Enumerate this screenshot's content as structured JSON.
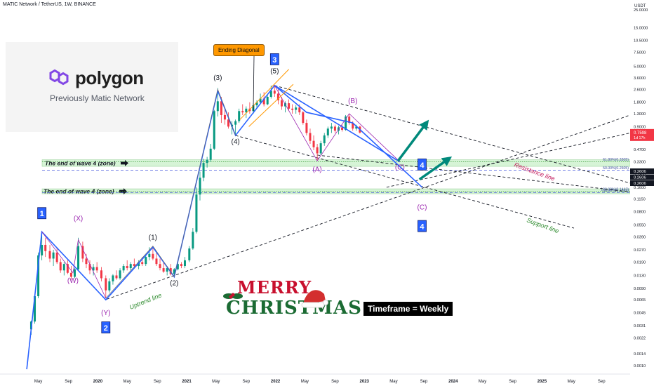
{
  "header": {
    "title": "MATIC Network / TetherUS, 1W, BINANCE"
  },
  "logo": {
    "word": "polygon",
    "subtitle": "Previously Matic Network",
    "color": "#8247e5"
  },
  "annotations": {
    "timeframe": "Timeframe = Weekly",
    "ending_diagonal": "Ending Diagonal",
    "wave4_zone_label": "The end of wave 4 (zone)",
    "resistance": "Resistance line",
    "support": "Support line",
    "uptrend": "Uptrend line",
    "xmas_top": "MERRY",
    "xmas_bottom": "CHRISTMAS"
  },
  "colors": {
    "up": "#089981",
    "down": "#f23645",
    "wave_line": "#2962ff",
    "purple": "#9c27b0",
    "zone": "#c8f0c8",
    "arrow": "#00897b",
    "blue_box": "#2962ff"
  },
  "chart_data": {
    "type": "candlestick",
    "title": "MATIC Network / TetherUS, 1W, BINANCE",
    "yscale": "log",
    "ylabel": "USDT",
    "ylim": [
      0.0008,
      25
    ],
    "y_ticks": [
      "25.0000",
      "15.0000",
      "10.5000",
      "7.5000",
      "5.0000",
      "3.6000",
      "2.6000",
      "1.8000",
      "1.3000",
      "0.9000",
      "0.6500",
      "0.4700",
      "0.3300",
      "0.2300",
      "0.1600",
      "0.1150",
      "0.0800",
      "0.0550",
      "0.0390",
      "0.0270",
      "0.0190",
      "0.0130",
      "0.0090",
      "0.0065",
      "0.0045",
      "0.0031",
      "0.0022",
      "0.0014",
      "0.0010"
    ],
    "x_ticks": [
      "May",
      "Sep",
      "2020",
      "May",
      "Sep",
      "2021",
      "May",
      "Sep",
      "2022",
      "May",
      "Sep",
      "2023",
      "May",
      "Sep",
      "2024",
      "May",
      "Sep",
      "2025",
      "May",
      "Sep"
    ],
    "current_price": {
      "value": "0.7598",
      "countdown": "1d 17h"
    },
    "price_tags": [
      "0.2606",
      "0.2606",
      "0.2606"
    ],
    "fib_levels": [
      {
        "label": "61.80%(0.3305)",
        "value": 0.3305
      },
      {
        "label": "50.00%(0.2605)",
        "value": 0.2605
      },
      {
        "label": "100.00%(0.1413)",
        "value": 0.1413
      },
      {
        "label": "50.00%(0.1369)",
        "value": 0.1369
      }
    ],
    "zones": [
      {
        "label": "The end of wave 4 (zone)",
        "low": 0.29,
        "high": 0.35
      },
      {
        "label": "The end of wave 4 (zone)",
        "low": 0.133,
        "high": 0.153
      }
    ],
    "wave_labels": [
      {
        "text": "1",
        "boxed": true,
        "t": 2019.37,
        "y": 0.075
      },
      {
        "text": "(X)",
        "boxed": false,
        "t": 2019.78,
        "y": 0.062
      },
      {
        "text": "(W)",
        "boxed": false,
        "t": 2019.72,
        "y": 0.0105
      },
      {
        "text": "(Y)",
        "boxed": false,
        "t": 2020.09,
        "y": 0.0042
      },
      {
        "text": "2",
        "boxed": true,
        "t": 2020.09,
        "y": 0.0029
      },
      {
        "text": "(1)",
        "boxed": false,
        "t": 2020.62,
        "y": 0.036
      },
      {
        "text": "(2)",
        "boxed": false,
        "t": 2020.86,
        "y": 0.0098
      },
      {
        "text": "(3)",
        "boxed": false,
        "t": 2021.35,
        "y": 3.4
      },
      {
        "text": "(4)",
        "boxed": false,
        "t": 2021.55,
        "y": 0.55
      },
      {
        "text": "(5)",
        "boxed": false,
        "t": 2021.99,
        "y": 4.1
      },
      {
        "text": "3",
        "boxed": true,
        "t": 2021.99,
        "y": 6.0
      },
      {
        "text": "(B)",
        "boxed": false,
        "t": 2022.87,
        "y": 1.75
      },
      {
        "text": "(A)",
        "boxed": false,
        "t": 2022.47,
        "y": 0.25
      },
      {
        "text": "(C)",
        "boxed": false,
        "t": 2023.4,
        "y": 0.265
      },
      {
        "text": "4",
        "boxed": true,
        "t": 2023.65,
        "y": 0.3
      },
      {
        "text": "(C)",
        "boxed": false,
        "t": 2023.65,
        "y": 0.085
      },
      {
        "text": "4",
        "boxed": true,
        "t": 2023.65,
        "y": 0.052
      }
    ],
    "blue_wave_path": [
      [
        2019.37,
        0.045
      ],
      [
        2020.09,
        0.0065
      ],
      [
        2020.62,
        0.029
      ],
      [
        2020.86,
        0.0125
      ],
      [
        2021.35,
        2.5
      ],
      [
        2021.55,
        0.7
      ],
      [
        2021.99,
        2.9
      ],
      [
        2022.35,
        1.35
      ],
      [
        2022.87,
        1.0
      ],
      [
        2023.65,
        0.16
      ]
    ],
    "candles": [
      {
        "t": 2019.25,
        "o": 0.0028,
        "h": 0.0036,
        "l": 0.0024,
        "c": 0.0035
      },
      {
        "t": 2019.29,
        "o": 0.0035,
        "h": 0.0075,
        "l": 0.0033,
        "c": 0.0072
      },
      {
        "t": 2019.33,
        "o": 0.0072,
        "h": 0.025,
        "l": 0.0068,
        "c": 0.023
      },
      {
        "t": 2019.37,
        "o": 0.023,
        "h": 0.045,
        "l": 0.02,
        "c": 0.031
      },
      {
        "t": 2019.41,
        "o": 0.031,
        "h": 0.038,
        "l": 0.022,
        "c": 0.026
      },
      {
        "t": 2019.46,
        "o": 0.026,
        "h": 0.031,
        "l": 0.019,
        "c": 0.021
      },
      {
        "t": 2019.5,
        "o": 0.021,
        "h": 0.027,
        "l": 0.017,
        "c": 0.025
      },
      {
        "t": 2019.54,
        "o": 0.025,
        "h": 0.029,
        "l": 0.018,
        "c": 0.019
      },
      {
        "t": 2019.58,
        "o": 0.019,
        "h": 0.021,
        "l": 0.014,
        "c": 0.015
      },
      {
        "t": 2019.62,
        "o": 0.015,
        "h": 0.019,
        "l": 0.013,
        "c": 0.018
      },
      {
        "t": 2019.66,
        "o": 0.018,
        "h": 0.02,
        "l": 0.0135,
        "c": 0.014
      },
      {
        "t": 2019.7,
        "o": 0.014,
        "h": 0.017,
        "l": 0.0115,
        "c": 0.0125
      },
      {
        "t": 2019.74,
        "o": 0.0125,
        "h": 0.016,
        "l": 0.012,
        "c": 0.0155
      },
      {
        "t": 2019.78,
        "o": 0.0155,
        "h": 0.038,
        "l": 0.015,
        "c": 0.03
      },
      {
        "t": 2019.83,
        "o": 0.03,
        "h": 0.034,
        "l": 0.019,
        "c": 0.021
      },
      {
        "t": 2019.87,
        "o": 0.021,
        "h": 0.024,
        "l": 0.016,
        "c": 0.018
      },
      {
        "t": 2019.91,
        "o": 0.018,
        "h": 0.02,
        "l": 0.0135,
        "c": 0.015
      },
      {
        "t": 2019.95,
        "o": 0.015,
        "h": 0.018,
        "l": 0.013,
        "c": 0.0165
      },
      {
        "t": 2019.99,
        "o": 0.0165,
        "h": 0.019,
        "l": 0.014,
        "c": 0.015
      },
      {
        "t": 2020.04,
        "o": 0.015,
        "h": 0.0165,
        "l": 0.011,
        "c": 0.012
      },
      {
        "t": 2020.09,
        "o": 0.012,
        "h": 0.013,
        "l": 0.0068,
        "c": 0.0085
      },
      {
        "t": 2020.13,
        "o": 0.0085,
        "h": 0.012,
        "l": 0.008,
        "c": 0.011
      },
      {
        "t": 2020.17,
        "o": 0.011,
        "h": 0.0135,
        "l": 0.01,
        "c": 0.013
      },
      {
        "t": 2020.21,
        "o": 0.013,
        "h": 0.015,
        "l": 0.0115,
        "c": 0.012
      },
      {
        "t": 2020.25,
        "o": 0.012,
        "h": 0.016,
        "l": 0.0115,
        "c": 0.015
      },
      {
        "t": 2020.29,
        "o": 0.015,
        "h": 0.018,
        "l": 0.014,
        "c": 0.017
      },
      {
        "t": 2020.33,
        "o": 0.017,
        "h": 0.02,
        "l": 0.015,
        "c": 0.016
      },
      {
        "t": 2020.37,
        "o": 0.016,
        "h": 0.019,
        "l": 0.015,
        "c": 0.018
      },
      {
        "t": 2020.41,
        "o": 0.018,
        "h": 0.021,
        "l": 0.016,
        "c": 0.017
      },
      {
        "t": 2020.46,
        "o": 0.017,
        "h": 0.02,
        "l": 0.0155,
        "c": 0.019
      },
      {
        "t": 2020.5,
        "o": 0.019,
        "h": 0.022,
        "l": 0.017,
        "c": 0.018
      },
      {
        "t": 2020.54,
        "o": 0.018,
        "h": 0.023,
        "l": 0.017,
        "c": 0.022
      },
      {
        "t": 2020.58,
        "o": 0.022,
        "h": 0.029,
        "l": 0.02,
        "c": 0.024
      },
      {
        "t": 2020.62,
        "o": 0.024,
        "h": 0.03,
        "l": 0.02,
        "c": 0.021
      },
      {
        "t": 2020.66,
        "o": 0.021,
        "h": 0.025,
        "l": 0.017,
        "c": 0.018
      },
      {
        "t": 2020.7,
        "o": 0.018,
        "h": 0.021,
        "l": 0.015,
        "c": 0.016
      },
      {
        "t": 2020.74,
        "o": 0.016,
        "h": 0.019,
        "l": 0.014,
        "c": 0.0145
      },
      {
        "t": 2020.78,
        "o": 0.0145,
        "h": 0.017,
        "l": 0.013,
        "c": 0.016
      },
      {
        "t": 2020.82,
        "o": 0.016,
        "h": 0.018,
        "l": 0.013,
        "c": 0.0135
      },
      {
        "t": 2020.86,
        "o": 0.0135,
        "h": 0.016,
        "l": 0.0125,
        "c": 0.0155
      },
      {
        "t": 2020.9,
        "o": 0.0155,
        "h": 0.019,
        "l": 0.015,
        "c": 0.018
      },
      {
        "t": 2020.94,
        "o": 0.018,
        "h": 0.019,
        "l": 0.016,
        "c": 0.017
      },
      {
        "t": 2020.98,
        "o": 0.017,
        "h": 0.022,
        "l": 0.016,
        "c": 0.02
      },
      {
        "t": 2021.03,
        "o": 0.02,
        "h": 0.03,
        "l": 0.019,
        "c": 0.028
      },
      {
        "t": 2021.07,
        "o": 0.028,
        "h": 0.05,
        "l": 0.027,
        "c": 0.045
      },
      {
        "t": 2021.11,
        "o": 0.045,
        "h": 0.16,
        "l": 0.043,
        "c": 0.13
      },
      {
        "t": 2021.15,
        "o": 0.13,
        "h": 0.25,
        "l": 0.11,
        "c": 0.21
      },
      {
        "t": 2021.19,
        "o": 0.21,
        "h": 0.36,
        "l": 0.19,
        "c": 0.32
      },
      {
        "t": 2021.23,
        "o": 0.32,
        "h": 0.38,
        "l": 0.28,
        "c": 0.35
      },
      {
        "t": 2021.27,
        "o": 0.35,
        "h": 0.55,
        "l": 0.33,
        "c": 0.48
      },
      {
        "t": 2021.31,
        "o": 0.48,
        "h": 1.45,
        "l": 0.46,
        "c": 1.4
      },
      {
        "t": 2021.35,
        "o": 1.4,
        "h": 2.7,
        "l": 1.2,
        "c": 1.85
      },
      {
        "t": 2021.39,
        "o": 1.85,
        "h": 2.1,
        "l": 1.0,
        "c": 1.25
      },
      {
        "t": 2021.43,
        "o": 1.25,
        "h": 1.5,
        "l": 0.95,
        "c": 1.1
      },
      {
        "t": 2021.47,
        "o": 1.1,
        "h": 1.35,
        "l": 0.85,
        "c": 0.9
      },
      {
        "t": 2021.51,
        "o": 0.9,
        "h": 1.05,
        "l": 0.72,
        "c": 0.95
      },
      {
        "t": 2021.55,
        "o": 0.95,
        "h": 1.1,
        "l": 0.7,
        "c": 1.05
      },
      {
        "t": 2021.59,
        "o": 1.05,
        "h": 1.5,
        "l": 1.0,
        "c": 1.4
      },
      {
        "t": 2021.63,
        "o": 1.4,
        "h": 1.7,
        "l": 1.25,
        "c": 1.35
      },
      {
        "t": 2021.67,
        "o": 1.35,
        "h": 1.6,
        "l": 1.15,
        "c": 1.5
      },
      {
        "t": 2021.71,
        "o": 1.5,
        "h": 1.8,
        "l": 1.3,
        "c": 1.4
      },
      {
        "t": 2021.75,
        "o": 1.4,
        "h": 1.75,
        "l": 1.3,
        "c": 1.65
      },
      {
        "t": 2021.79,
        "o": 1.65,
        "h": 1.9,
        "l": 1.5,
        "c": 1.8
      },
      {
        "t": 2021.83,
        "o": 1.8,
        "h": 2.3,
        "l": 1.7,
        "c": 2.0
      },
      {
        "t": 2021.87,
        "o": 2.0,
        "h": 2.4,
        "l": 1.6,
        "c": 1.7
      },
      {
        "t": 2021.91,
        "o": 1.7,
        "h": 2.2,
        "l": 1.65,
        "c": 2.1
      },
      {
        "t": 2021.95,
        "o": 2.1,
        "h": 2.9,
        "l": 2.0,
        "c": 2.5
      },
      {
        "t": 2021.99,
        "o": 2.5,
        "h": 2.92,
        "l": 2.1,
        "c": 2.3
      },
      {
        "t": 2022.03,
        "o": 2.3,
        "h": 2.6,
        "l": 1.7,
        "c": 1.9
      },
      {
        "t": 2022.07,
        "o": 1.9,
        "h": 2.1,
        "l": 1.45,
        "c": 1.6
      },
      {
        "t": 2022.11,
        "o": 1.6,
        "h": 1.85,
        "l": 1.35,
        "c": 1.75
      },
      {
        "t": 2022.15,
        "o": 1.75,
        "h": 1.95,
        "l": 1.4,
        "c": 1.5
      },
      {
        "t": 2022.19,
        "o": 1.5,
        "h": 1.7,
        "l": 1.3,
        "c": 1.45
      },
      {
        "t": 2022.23,
        "o": 1.45,
        "h": 1.65,
        "l": 1.3,
        "c": 1.55
      },
      {
        "t": 2022.27,
        "o": 1.55,
        "h": 1.7,
        "l": 1.25,
        "c": 1.35
      },
      {
        "t": 2022.31,
        "o": 1.35,
        "h": 1.4,
        "l": 0.95,
        "c": 1.0
      },
      {
        "t": 2022.35,
        "o": 1.0,
        "h": 1.1,
        "l": 0.7,
        "c": 0.75
      },
      {
        "t": 2022.39,
        "o": 0.75,
        "h": 0.85,
        "l": 0.55,
        "c": 0.6
      },
      {
        "t": 2022.43,
        "o": 0.6,
        "h": 0.7,
        "l": 0.46,
        "c": 0.5
      },
      {
        "t": 2022.47,
        "o": 0.5,
        "h": 0.55,
        "l": 0.34,
        "c": 0.42
      },
      {
        "t": 2022.51,
        "o": 0.42,
        "h": 0.6,
        "l": 0.4,
        "c": 0.56
      },
      {
        "t": 2022.55,
        "o": 0.56,
        "h": 0.75,
        "l": 0.52,
        "c": 0.7
      },
      {
        "t": 2022.59,
        "o": 0.7,
        "h": 0.9,
        "l": 0.65,
        "c": 0.85
      },
      {
        "t": 2022.63,
        "o": 0.85,
        "h": 1.0,
        "l": 0.75,
        "c": 0.9
      },
      {
        "t": 2022.67,
        "o": 0.9,
        "h": 0.95,
        "l": 0.75,
        "c": 0.8
      },
      {
        "t": 2022.71,
        "o": 0.8,
        "h": 0.92,
        "l": 0.72,
        "c": 0.88
      },
      {
        "t": 2022.75,
        "o": 0.88,
        "h": 0.95,
        "l": 0.78,
        "c": 0.82
      },
      {
        "t": 2022.79,
        "o": 0.82,
        "h": 1.25,
        "l": 0.8,
        "c": 1.2
      },
      {
        "t": 2022.83,
        "o": 1.2,
        "h": 1.3,
        "l": 0.95,
        "c": 1.0
      },
      {
        "t": 2022.87,
        "o": 1.0,
        "h": 1.05,
        "l": 0.8,
        "c": 0.85
      },
      {
        "t": 2022.91,
        "o": 0.85,
        "h": 0.95,
        "l": 0.8,
        "c": 0.9
      },
      {
        "t": 2022.95,
        "o": 0.9,
        "h": 0.92,
        "l": 0.74,
        "c": 0.76
      }
    ]
  }
}
